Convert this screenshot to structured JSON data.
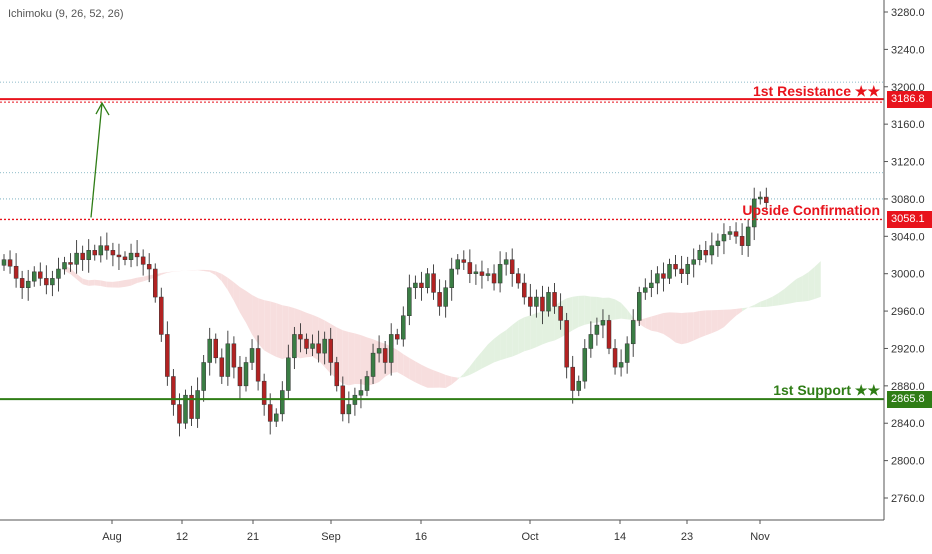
{
  "indicator": {
    "label": "Ichimoku (9, 26, 52, 26)"
  },
  "levels": {
    "resistance": {
      "label": "1st Resistance ★★",
      "value": 3186.8,
      "tag": "3186.8",
      "color": "#e8131c"
    },
    "confirmation": {
      "label": "Upside Confirmation",
      "value": 3058.1,
      "tag": "3058.1",
      "color": "#e8131c"
    },
    "support": {
      "label": "1st Support ★★",
      "value": 2865.8,
      "tag": "2865.8",
      "color": "#2f7d16"
    }
  },
  "colors": {
    "up": "#3a7d44",
    "down": "#b22222",
    "cloud_bull": "#e3f1e0",
    "cloud_bear": "#f7dede",
    "arrow": "#2f7d16"
  },
  "chart_data": {
    "type": "candlestick",
    "title": "",
    "indicator": "Ichimoku (9, 26, 52, 26)",
    "ylim": [
      2752,
      3296
    ],
    "y_ticks": [
      "3280.0",
      "3240.0",
      "3200.0",
      "3160.0",
      "3120.0",
      "3080.0",
      "3040.0",
      "3000.0",
      "2960.0",
      "2920.0",
      "2880.0",
      "2840.0",
      "2800.0",
      "2760.0"
    ],
    "x_ticks": [
      "Aug",
      "12",
      "21",
      "Sep",
      "16",
      "Oct",
      "14",
      "23",
      "Nov"
    ],
    "dotted_levels": [
      3205,
      3108,
      3080
    ],
    "series": [
      {
        "name": "",
        "close": [
          3015,
          3008,
          2995,
          2985,
          2992,
          3002,
          2995,
          2988,
          2995,
          3005,
          3012,
          3010,
          3022,
          3015,
          3025,
          3020,
          3030,
          3025,
          3020,
          3018,
          3015,
          3022,
          3018,
          3010,
          3005,
          2975,
          2935,
          2890,
          2860,
          2840,
          2870,
          2845,
          2875,
          2905,
          2930,
          2910,
          2890,
          2925,
          2900,
          2880,
          2905,
          2920,
          2885,
          2860,
          2842,
          2850,
          2875,
          2910,
          2935,
          2930,
          2920,
          2925,
          2915,
          2930,
          2905,
          2880,
          2850,
          2860,
          2870,
          2875,
          2890,
          2915,
          2920,
          2905,
          2935,
          2930,
          2955,
          2985,
          2990,
          2985,
          3000,
          2980,
          2965,
          2985,
          3005,
          3015,
          3012,
          3000,
          3002,
          2998,
          3000,
          2990,
          3010,
          3015,
          3000,
          2990,
          2975,
          2965,
          2975,
          2960,
          2980,
          2965,
          2950,
          2900,
          2875,
          2885,
          2920,
          2935,
          2945,
          2950,
          2920,
          2900,
          2905,
          2925,
          2950,
          2980,
          2985,
          2990,
          3000,
          2995,
          3010,
          3005,
          3000,
          3010,
          3015,
          3025,
          3020,
          3030,
          3035,
          3042,
          3045,
          3040,
          3030,
          3050,
          3080,
          3082,
          3076
        ]
      }
    ],
    "levels": [
      {
        "name": "1st Resistance ★★",
        "value": 3186.8
      },
      {
        "name": "Upside Confirmation",
        "value": 3058.1
      },
      {
        "name": "1st Support ★★",
        "value": 2865.8
      }
    ]
  }
}
